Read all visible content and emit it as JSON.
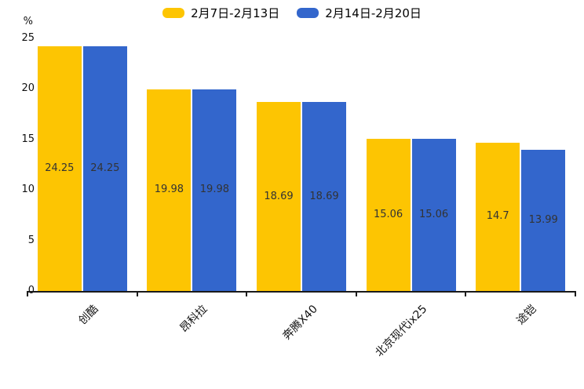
{
  "chart_data": {
    "type": "bar",
    "title": "",
    "categories": [
      "创酷",
      "昂科拉",
      "奔腾X40",
      "北京现代ix25",
      "途铠"
    ],
    "series": [
      {
        "name": "2月7日-2月13日",
        "color": "#FDC502",
        "values": [
          24.25,
          19.98,
          18.69,
          15.06,
          14.7
        ]
      },
      {
        "name": "2月14日-2月20日",
        "color": "#3366CC",
        "values": [
          24.25,
          19.98,
          18.69,
          15.06,
          13.99
        ]
      }
    ],
    "value_labels": {
      "series_0": [
        "24.25",
        "19.98",
        "18.69",
        "15.06",
        "14.7"
      ],
      "series_1": [
        "24.25",
        "19.98",
        "18.69",
        "15.06",
        "13.99"
      ]
    },
    "ylabel": "%",
    "xlabel": "",
    "ylim": [
      0,
      25
    ],
    "yticks": [
      "0",
      "5",
      "10",
      "15",
      "20",
      "25"
    ],
    "grid": false,
    "legend_position": "top-center",
    "bar_value_labels_inside": true
  },
  "style": {
    "background": "#ffffff",
    "axis_color": "#1a1a1a",
    "tick_label_color": "#111111",
    "value_label_color": "#333333",
    "x_label_color": "#111111"
  }
}
